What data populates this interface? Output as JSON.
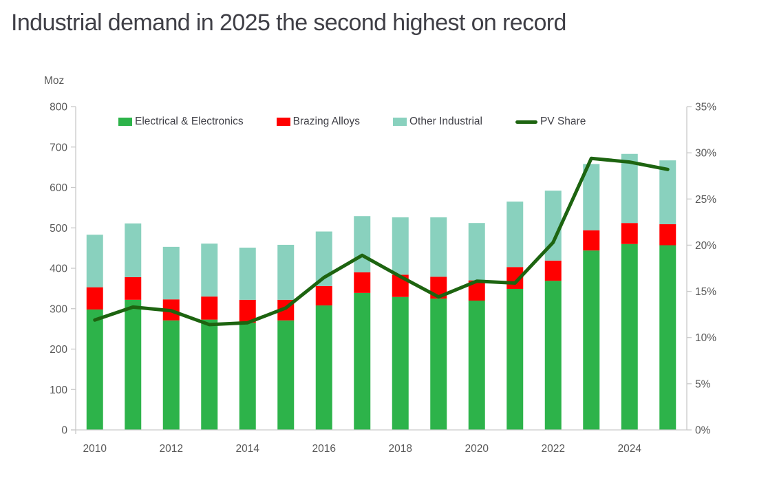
{
  "title": "Industrial demand in 2025 the second highest on record",
  "colors": {
    "electrical_green": "#2db34a",
    "brazing_red": "#ff0000",
    "other_teal": "#89d1be",
    "pv_line_dark_green": "#1d6410",
    "axis_line_gray": "#c9c9c9",
    "tick_label_gray": "#595959",
    "title_color": "#3f3f46"
  },
  "chart_data": {
    "type": "bar",
    "subtype": "stacked-bars-with-line-overlay",
    "title": "Industrial demand in 2025 the second highest on record",
    "legend_position": "top",
    "grid": false,
    "categories": [
      "2010",
      "2011",
      "2012",
      "2013",
      "2014",
      "2015",
      "2016",
      "2017",
      "2018",
      "2019",
      "2020",
      "2021",
      "2022",
      "2023",
      "2024",
      "2025"
    ],
    "x_tick_labels": [
      "2010",
      "2012",
      "2014",
      "2016",
      "2018",
      "2020",
      "2022",
      "2024"
    ],
    "series": [
      {
        "name": "Electrical & Electronics",
        "type": "bar",
        "axis": "left",
        "color": "#2db34a",
        "values": [
          298,
          322,
          271,
          273,
          265,
          271,
          308,
          339,
          329,
          325,
          320,
          349,
          369,
          444,
          460,
          457
        ]
      },
      {
        "name": "Brazing Alloys",
        "type": "bar",
        "axis": "left",
        "color": "#ff0000",
        "values": [
          55,
          56,
          52,
          57,
          57,
          51,
          48,
          51,
          55,
          54,
          50,
          54,
          50,
          50,
          52,
          52
        ]
      },
      {
        "name": "Other Industrial",
        "type": "bar",
        "axis": "left",
        "color": "#89d1be",
        "values": [
          130,
          133,
          130,
          131,
          129,
          136,
          135,
          139,
          142,
          147,
          142,
          162,
          173,
          164,
          171,
          158
        ]
      },
      {
        "name": "PV Share",
        "type": "line",
        "axis": "right",
        "color": "#1d6410",
        "values": [
          11.9,
          13.3,
          12.9,
          11.4,
          11.6,
          13.2,
          16.5,
          18.9,
          16.6,
          14.4,
          16.1,
          15.9,
          20.3,
          29.4,
          29.0,
          28.2
        ]
      }
    ],
    "stacked_totals": [
      483,
      511,
      453,
      461,
      451,
      458,
      491,
      529,
      526,
      526,
      512,
      565,
      592,
      658,
      683,
      667
    ],
    "y_left": {
      "label": "Moz",
      "min": 0,
      "max": 800,
      "step": 100,
      "ticks": [
        "0",
        "100",
        "200",
        "300",
        "400",
        "500",
        "600",
        "700",
        "800"
      ]
    },
    "y_right": {
      "label": "",
      "min": 0,
      "max": 35,
      "step": 5,
      "ticks": [
        "0%",
        "5%",
        "10%",
        "15%",
        "20%",
        "25%",
        "30%",
        "35%"
      ]
    }
  }
}
